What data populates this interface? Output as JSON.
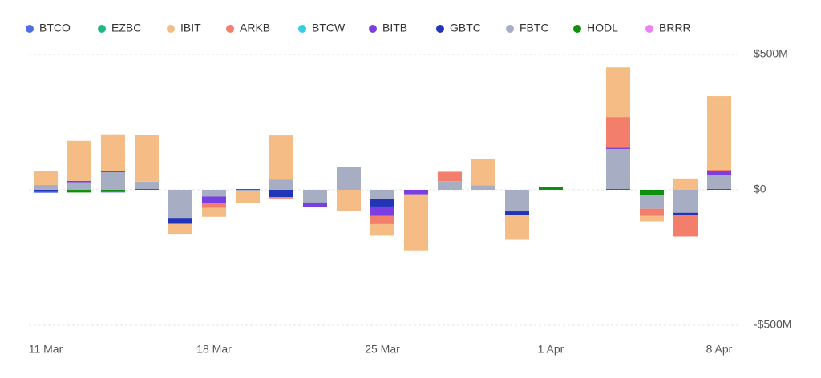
{
  "chart_data": {
    "type": "bar",
    "stacked": true,
    "categories": [
      "11 Mar",
      null,
      null,
      null,
      null,
      "18 Mar",
      null,
      null,
      null,
      null,
      "25 Mar",
      null,
      null,
      null,
      null,
      "1 Apr",
      null,
      null,
      null,
      null,
      "8 Apr"
    ],
    "series": [
      {
        "name": "BTCO",
        "color": "#4f6fe0",
        "values": [
          -3,
          0,
          -5,
          0,
          0,
          0,
          0,
          0,
          0,
          0,
          0,
          0,
          0,
          0,
          0,
          0,
          null,
          0,
          0,
          0,
          0
        ]
      },
      {
        "name": "EZBC",
        "color": "#1fb885",
        "values": [
          0,
          0,
          0,
          0,
          0,
          0,
          0,
          0,
          0,
          0,
          0,
          0,
          0,
          0,
          0,
          0,
          null,
          0,
          0,
          0,
          0
        ]
      },
      {
        "name": "IBIT",
        "color": "#f5bd85",
        "values": [
          50,
          148,
          135,
          172,
          -37,
          -33,
          -45,
          163,
          0,
          -77,
          -43,
          -207,
          5,
          98,
          -90,
          0,
          null,
          183,
          -20,
          42,
          272
        ]
      },
      {
        "name": "ARKB",
        "color": "#f47e6c",
        "values": [
          0,
          0,
          0,
          0,
          0,
          -18,
          0,
          -5,
          0,
          0,
          -30,
          0,
          33,
          0,
          0,
          0,
          null,
          113,
          -27,
          -80,
          3
        ]
      },
      {
        "name": "BTCW",
        "color": "#38cde6",
        "values": [
          0,
          0,
          0,
          0,
          0,
          0,
          0,
          0,
          0,
          0,
          0,
          0,
          0,
          0,
          0,
          0,
          null,
          0,
          0,
          0,
          0
        ]
      },
      {
        "name": "BITB",
        "color": "#7a3fe0",
        "values": [
          0,
          5,
          5,
          0,
          0,
          -24,
          0,
          0,
          -15,
          0,
          -35,
          -17,
          0,
          0,
          0,
          0,
          null,
          5,
          0,
          0,
          15
        ]
      },
      {
        "name": "GBTC",
        "color": "#2234b8",
        "values": [
          -8,
          0,
          0,
          0,
          -22,
          0,
          0,
          -27,
          -3,
          0,
          -27,
          0,
          0,
          0,
          -15,
          0,
          null,
          0,
          0,
          -8,
          0
        ]
      },
      {
        "name": "FBTC",
        "color": "#a7adc2",
        "values": [
          18,
          28,
          65,
          27,
          -104,
          -25,
          -5,
          38,
          -47,
          85,
          -35,
          0,
          32,
          17,
          -80,
          0,
          null,
          148,
          -50,
          -85,
          53
        ]
      },
      {
        "name": "HODL",
        "color": "#0e8f0e",
        "values": [
          0,
          -10,
          -5,
          3,
          0,
          0,
          3,
          0,
          0,
          0,
          0,
          0,
          0,
          0,
          0,
          10,
          null,
          3,
          -20,
          0,
          3
        ]
      },
      {
        "name": "BRRR",
        "color": "#ee82ee",
        "values": [
          0,
          0,
          0,
          0,
          0,
          0,
          0,
          0,
          0,
          0,
          0,
          0,
          0,
          0,
          0,
          0,
          null,
          0,
          0,
          0,
          0
        ]
      }
    ],
    "ylim": [
      -500,
      500
    ],
    "yticks": [
      {
        "value": 500,
        "label": "$500M"
      },
      {
        "value": 0,
        "label": "$0"
      },
      {
        "value": -500,
        "label": "-$500M"
      }
    ],
    "grid": true
  }
}
